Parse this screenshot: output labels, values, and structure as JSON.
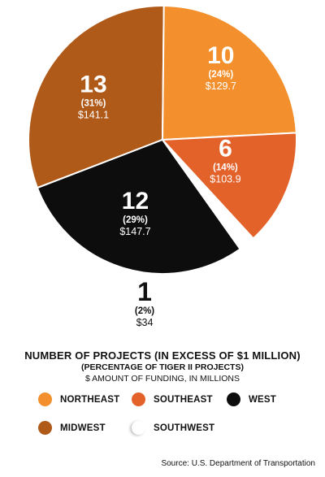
{
  "chart_data": {
    "type": "pie",
    "title": "NUMBER OF PROJECTS (IN EXCESS OF $1 MILLION)",
    "subtitle": "(PERCENTAGE OF TIGER II PROJECTS)",
    "subtitle2": "$ AMOUNT OF FUNDING, IN MILLIONS",
    "slices": [
      {
        "name": "MIDWEST",
        "count": "13",
        "percent_label": "(31%)",
        "amount_label": "$141.1",
        "count_value": 13,
        "percent": 31,
        "amount": 141.1,
        "color": "#b05a1a"
      },
      {
        "name": "NORTHEAST",
        "count": "10",
        "percent_label": "(24%)",
        "amount_label": "$129.7",
        "count_value": 10,
        "percent": 24,
        "amount": 129.7,
        "color": "#f3902d"
      },
      {
        "name": "SOUTHEAST",
        "count": "6",
        "percent_label": "(14%)",
        "amount_label": "$103.9",
        "count_value": 6,
        "percent": 14,
        "amount": 103.9,
        "color": "#e2622a"
      },
      {
        "name": "SOUTHWEST",
        "count": "1",
        "percent_label": "(2%)",
        "amount_label": "$34",
        "count_value": 1,
        "percent": 2,
        "amount": 34,
        "color": "#ffffff"
      },
      {
        "name": "WEST",
        "count": "12",
        "percent_label": "(29%)",
        "amount_label": "$147.7",
        "count_value": 12,
        "percent": 29,
        "amount": 147.7,
        "color": "#0d0d0d"
      }
    ],
    "legend": [
      {
        "name": "NORTHEAST",
        "color": "#f3902d"
      },
      {
        "name": "SOUTHEAST",
        "color": "#e2622a"
      },
      {
        "name": "WEST",
        "color": "#0d0d0d"
      },
      {
        "name": "MIDWEST",
        "color": "#b05a1a"
      },
      {
        "name": "SOUTHWEST",
        "color": "#ffffff"
      }
    ],
    "source": "Source: U.S. Department of Transportation"
  }
}
